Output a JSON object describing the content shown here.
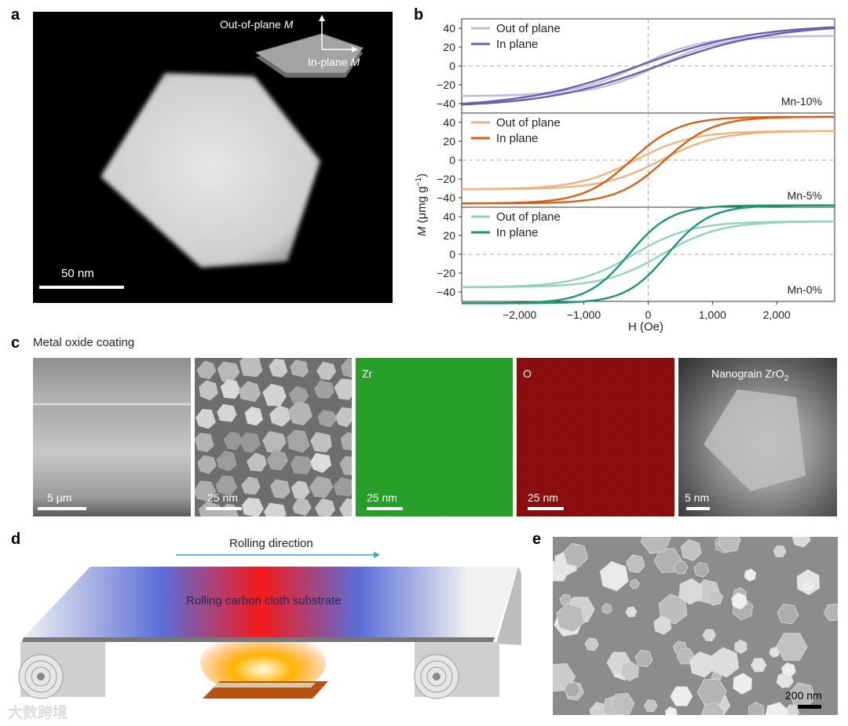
{
  "panels": {
    "a": {
      "letter": "a",
      "inset_out": "Out-of-plane ",
      "inset_out_sym": "M",
      "inset_in": "In-plane ",
      "inset_in_sym": "M",
      "scale": "50 nm"
    },
    "b": {
      "letter": "b",
      "ylabel_sym": "M",
      "ylabel_units": " (μmg g",
      "ylabel_exp": "−1",
      "ylabel_close": ")",
      "xlabel": "H (Oe)"
    },
    "c": {
      "letter": "c",
      "title": "Metal oxide coating",
      "images": [
        {
          "label": "",
          "scale": "5 μm"
        },
        {
          "label": "",
          "scale": "25 nm"
        },
        {
          "label": "Zr",
          "scale": "25 nm"
        },
        {
          "label": "O",
          "scale": "25 nm"
        },
        {
          "label_main": "Nanograin ZrO",
          "label_sub": "2",
          "scale": "5 nm"
        }
      ]
    },
    "d": {
      "letter": "d",
      "direction": "Rolling direction",
      "substrate": "Rolling carbon cloth substrate"
    },
    "e": {
      "letter": "e",
      "scale": "200 nm"
    }
  },
  "watermark": "大数跨境",
  "colors": {
    "mn10_out": "#c3bedf",
    "mn10_in": "#6b5eae",
    "mn5_out": "#f0b27f",
    "mn5_in": "#dc5e12",
    "mn0_out": "#92d3bb",
    "mn0_in": "#1a9a6c"
  },
  "chart_data": [
    {
      "type": "line",
      "label": "Mn-10%",
      "xlim": [
        -2900,
        2900
      ],
      "ylim": [
        -50,
        50
      ],
      "yticks": [
        -40,
        -20,
        0,
        20,
        40
      ],
      "grid": false,
      "legend": "top-left",
      "series": [
        {
          "name": "Out of plane",
          "ms": 32,
          "hc": 150,
          "k": 1000,
          "color": "#c3bedf"
        },
        {
          "name": "In plane",
          "ms": 44,
          "hc": 150,
          "k": 1800,
          "color": "#6b5eae"
        }
      ]
    },
    {
      "type": "line",
      "label": "Mn-5%",
      "xlim": [
        -2900,
        2900
      ],
      "ylim": [
        -50,
        50
      ],
      "yticks": [
        -40,
        -20,
        0,
        20,
        40
      ],
      "grid": false,
      "legend": "top-left",
      "series": [
        {
          "name": "Out of plane",
          "ms": 31,
          "hc": 200,
          "k": 900,
          "color": "#f0b27f"
        },
        {
          "name": "In plane",
          "ms": 46,
          "hc": 260,
          "k": 750,
          "color": "#dc5e12"
        }
      ]
    },
    {
      "type": "line",
      "label": "Mn-0%",
      "xlim": [
        -2900,
        2900
      ],
      "ylim": [
        -50,
        50
      ],
      "yticks": [
        -40,
        -20,
        0,
        20,
        40
      ],
      "xticks": [
        -2000,
        -1000,
        0,
        1000,
        2000
      ],
      "xticklabels": [
        "−2,000",
        "−1,000",
        "0",
        "1,000",
        "2,000"
      ],
      "grid": false,
      "legend": "top-left",
      "series": [
        {
          "name": "Out of plane",
          "ms": 35,
          "hc": 220,
          "k": 900,
          "color": "#92d3bb"
        },
        {
          "name": "In plane",
          "ms": 52,
          "hc": 300,
          "k": 650,
          "color": "#1a9a6c"
        }
      ]
    }
  ]
}
